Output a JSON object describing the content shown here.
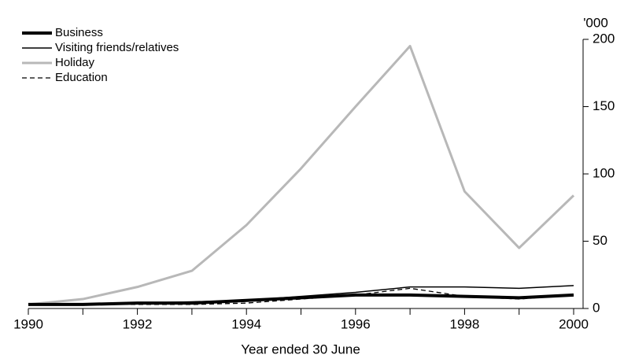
{
  "chart_data": {
    "type": "line",
    "x_label": "Year ended 30 June",
    "y_unit": "'000",
    "x": [
      1990,
      1991,
      1992,
      1993,
      1994,
      1995,
      1996,
      1997,
      1998,
      1999,
      2000
    ],
    "xlim": [
      1990,
      2000
    ],
    "xticks": [
      1990,
      1992,
      1994,
      1996,
      1998,
      2000
    ],
    "xminorticks": [
      1991,
      1993,
      1995,
      1997,
      1999
    ],
    "ylim": [
      0,
      200
    ],
    "yticks": [
      0,
      50,
      100,
      150,
      200
    ],
    "legend": "top-left",
    "series": [
      {
        "name": "Business",
        "color": "#000000",
        "width": 4,
        "dash": false,
        "values": [
          3,
          3,
          4,
          4,
          6,
          8,
          10,
          10,
          9,
          8,
          10
        ]
      },
      {
        "name": "Visiting friends/relatives",
        "color": "#000000",
        "width": 1.5,
        "dash": false,
        "values": [
          3,
          3,
          4,
          5,
          6,
          9,
          12,
          16,
          16,
          15,
          17
        ]
      },
      {
        "name": "Holiday",
        "color": "#b8b8b8",
        "width": 3,
        "dash": false,
        "values": [
          3,
          7,
          16,
          28,
          62,
          104,
          150,
          195,
          87,
          45,
          84
        ]
      },
      {
        "name": "Education",
        "color": "#000000",
        "width": 1.3,
        "dash": true,
        "values": [
          3,
          3,
          3,
          3,
          4,
          7,
          10,
          15,
          9,
          7,
          10
        ]
      }
    ]
  }
}
